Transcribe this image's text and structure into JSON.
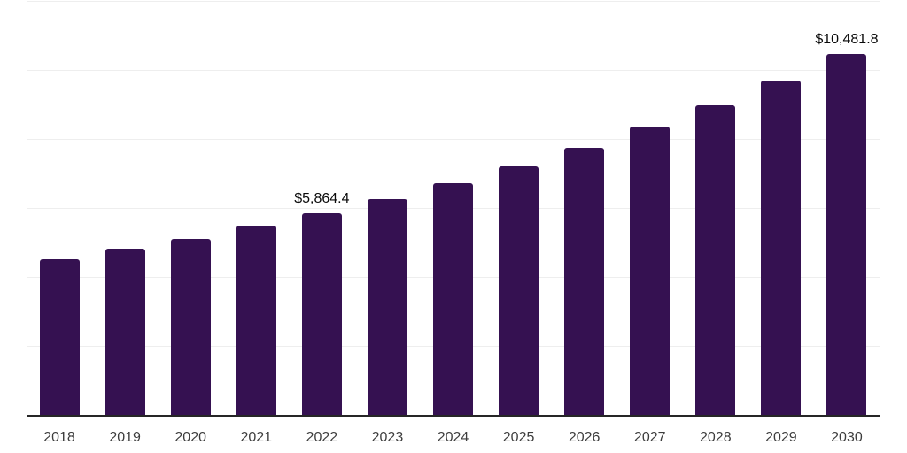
{
  "chart_data": {
    "type": "bar",
    "title": "",
    "xlabel": "",
    "ylabel": "",
    "categories": [
      "2018",
      "2019",
      "2020",
      "2021",
      "2022",
      "2023",
      "2024",
      "2025",
      "2026",
      "2027",
      "2028",
      "2029",
      "2030"
    ],
    "values": [
      4530,
      4850,
      5140,
      5510,
      5864.4,
      6280,
      6750,
      7230,
      7760,
      8375,
      9000,
      9725,
      10481.8
    ],
    "data_labels": {
      "2022": "$5,864.4",
      "2030": "$10,481.8"
    },
    "ylim": [
      0,
      12000
    ],
    "grid_step": 2000,
    "grid": true,
    "legend": false,
    "bar_color": "#351151",
    "axis_color": "#262626",
    "grid_color": "#eeeeee",
    "tick_label_color": "#3d3d3d",
    "data_label_color": "#0a0a0a",
    "background": "#ffffff"
  }
}
